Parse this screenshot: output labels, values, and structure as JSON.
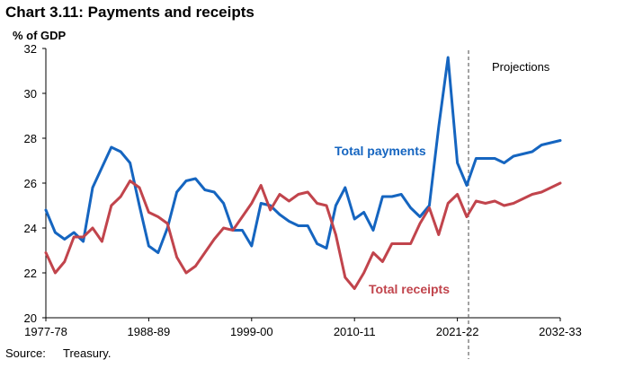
{
  "chart_data": {
    "type": "line",
    "title": "Chart 3.11: Payments and receipts",
    "ylabel": "% of GDP",
    "xlabel": "",
    "ylim": [
      20,
      32
    ],
    "yticks": [
      20,
      22,
      24,
      26,
      28,
      30,
      32
    ],
    "xtick_labels": [
      "1977-78",
      "1988-89",
      "1999-00",
      "2010-11",
      "2021-22",
      "2032-33"
    ],
    "x_start": 1977,
    "x_end": 2032,
    "projection_start": 2022,
    "projection_label": "Projections",
    "grid": false,
    "series": [
      {
        "name": "Total payments",
        "color": "#1565c0",
        "values": [
          24.8,
          23.8,
          23.5,
          23.8,
          23.4,
          25.8,
          26.7,
          27.6,
          27.4,
          26.9,
          25.0,
          23.2,
          22.9,
          24.0,
          25.6,
          26.1,
          26.2,
          25.7,
          25.6,
          25.1,
          23.9,
          23.9,
          23.2,
          25.1,
          25.0,
          24.6,
          24.3,
          24.1,
          24.1,
          23.3,
          23.1,
          25.0,
          25.8,
          24.4,
          24.7,
          23.9,
          25.4,
          25.4,
          25.5,
          24.9,
          24.5,
          25.0,
          28.5,
          31.6,
          26.9,
          25.9,
          27.1,
          27.1,
          27.1,
          26.9,
          27.2,
          27.3,
          27.4,
          27.7,
          27.8,
          27.9
        ]
      },
      {
        "name": "Total receipts",
        "color": "#c1444c",
        "values": [
          22.9,
          22.0,
          22.5,
          23.6,
          23.6,
          24.0,
          23.4,
          25.0,
          25.4,
          26.1,
          25.8,
          24.7,
          24.5,
          24.2,
          22.7,
          22.0,
          22.3,
          22.9,
          23.5,
          24.0,
          23.9,
          24.5,
          25.1,
          25.9,
          24.8,
          25.5,
          25.2,
          25.5,
          25.6,
          25.1,
          25.0,
          23.7,
          21.8,
          21.3,
          22.0,
          22.9,
          22.5,
          23.3,
          23.3,
          23.3,
          24.2,
          24.9,
          23.7,
          25.1,
          25.5,
          24.5,
          25.2,
          25.1,
          25.2,
          25.0,
          25.1,
          25.3,
          25.5,
          25.6,
          25.8,
          26.0
        ]
      }
    ],
    "annotations": [
      {
        "text": "Total payments",
        "series": 0
      },
      {
        "text": "Total receipts",
        "series": 1
      }
    ]
  },
  "source": {
    "label": "Source:",
    "text": "Treasury."
  }
}
